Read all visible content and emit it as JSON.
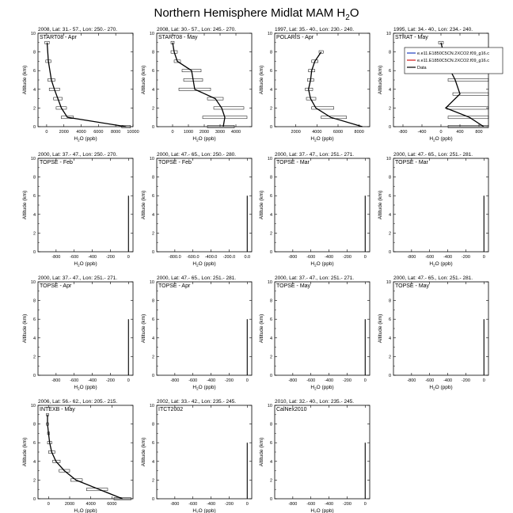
{
  "figure": {
    "title_main": "Northern Hemisphere Midlat MAM H",
    "title_sub": "2",
    "title_tail": "O",
    "xlabel_main": "H",
    "xlabel_sub": "2",
    "xlabel_tail": "O (ppb)",
    "ylabel": "Altitude (km)",
    "colors": {
      "model_blue": "#1f3fbf",
      "model_red": "#d01818",
      "data": "#000000"
    }
  },
  "chart_data": [
    {
      "type": "line",
      "header": "2008, Lat: 31.- 57., Lon: 250.- 270.",
      "campaign": "START08 - Apr",
      "xlim": [
        -1000,
        10000
      ],
      "xticks": [
        0,
        2000,
        4000,
        6000,
        8000,
        10000
      ],
      "xtick_labels": [
        "0",
        "2000",
        "4000",
        "6000",
        "8000",
        "10000"
      ],
      "ylim": [
        0,
        10
      ],
      "yticks": [
        0,
        2,
        4,
        6,
        8,
        10
      ],
      "series": [
        {
          "name": "Data",
          "x": [
            9200,
            2400,
            1700,
            1300,
            900,
            550,
            200,
            50
          ],
          "y": [
            0,
            1,
            2,
            3,
            4,
            5,
            7,
            9
          ],
          "xmin": [
            8700,
            1700,
            1100,
            800,
            300,
            150,
            -100,
            -200
          ],
          "xmax": [
            9700,
            3100,
            2300,
            1800,
            1500,
            950,
            500,
            300
          ]
        }
      ]
    },
    {
      "type": "line",
      "header": "2008, Lat: 30.- 57., Lon: 245.- 270.",
      "campaign": "START08 - May",
      "xlim": [
        -1000,
        5000
      ],
      "xticks": [
        0,
        1000,
        2000,
        3000,
        4000
      ],
      "xtick_labels": [
        "0",
        "1000",
        "2000",
        "3000",
        "4000"
      ],
      "ylim": [
        0,
        10
      ],
      "yticks": [
        0,
        2,
        4,
        6,
        8,
        10
      ],
      "series": [
        {
          "name": "Data",
          "x": [
            3200,
            3300,
            3100,
            2700,
            1400,
            1300,
            1200,
            300,
            100,
            0
          ],
          "y": [
            0,
            1,
            2,
            3,
            4,
            5,
            6,
            7,
            8,
            9
          ],
          "xmin": [
            2200,
            1900,
            2600,
            2200,
            400,
            700,
            600,
            100,
            -100,
            -100
          ],
          "xmax": [
            3900,
            4700,
            4500,
            3200,
            2400,
            1900,
            1800,
            500,
            300,
            100
          ]
        }
      ]
    },
    {
      "type": "line",
      "header": "1997, Lat: 35.- 40., Lon: 230.- 240.",
      "campaign": "POLARIS - Apr",
      "xlim": [
        0,
        9000
      ],
      "xticks": [
        2000,
        4000,
        6000,
        8000
      ],
      "xtick_labels": [
        "2000",
        "4000",
        "6000",
        "8000"
      ],
      "ylim": [
        0,
        10
      ],
      "yticks": [
        0,
        2,
        4,
        6,
        8,
        10
      ],
      "series": [
        {
          "name": "Data",
          "x": [
            8300,
            5300,
            3900,
            3400,
            3200,
            3400,
            3500,
            3800,
            4400
          ],
          "y": [
            0,
            1,
            2,
            3,
            4,
            5,
            6,
            7,
            8
          ],
          "xmin": [
            8300,
            4400,
            3500,
            3000,
            2900,
            3100,
            3200,
            3500,
            4200
          ],
          "xmax": [
            8300,
            6800,
            5600,
            3900,
            3600,
            3700,
            3800,
            4100,
            4600
          ]
        }
      ]
    },
    {
      "type": "line",
      "header": "1995, Lat: 34.- 40., Lon: 234.- 240.",
      "campaign": "STRAT - May",
      "xlim": [
        -1000,
        1000
      ],
      "xticks": [
        -800,
        -400,
        0,
        400,
        800
      ],
      "xtick_labels": [
        "-800",
        "-400",
        "0",
        "400",
        "800"
      ],
      "ylim": [
        0,
        10
      ],
      "yticks": [
        0,
        2,
        4,
        6,
        8,
        10
      ],
      "legend": [
        "e.e11.E1850C5CN.2XCO2.f09_g16.c",
        "e.e11.E1850C5CN.2XCO2.f09_g16.c",
        "Data"
      ],
      "series": [
        {
          "name": "Data",
          "x": [
            900,
            600,
            100,
            400,
            300,
            100,
            0
          ],
          "y": [
            0,
            1,
            2,
            3.5,
            5,
            7,
            9
          ],
          "xmin": [
            150,
            150,
            120,
            250,
            150,
            100,
            -50
          ],
          "xmax": [
            1000,
            1000,
            1000,
            1000,
            1000,
            1000,
            50
          ]
        }
      ]
    },
    {
      "type": "line",
      "header": "2000, Lat: 37.- 47., Lon: 250.- 270.",
      "campaign": "TOPSE - Feb",
      "xlim": [
        -1000,
        50
      ],
      "xticks": [
        -800,
        -600,
        -400,
        -200,
        0
      ],
      "xtick_labels": [
        "-800",
        "-600",
        "-400",
        "-200",
        "0"
      ],
      "ylim": [
        0,
        10
      ],
      "yticks": [
        0,
        2,
        4,
        6,
        8,
        10
      ],
      "series": []
    },
    {
      "type": "line",
      "header": "2000, Lat: 47.- 65., Lon: 250.- 280.",
      "campaign": "TOPSE - Feb",
      "xlim": [
        -1000,
        50
      ],
      "xticks": [
        -800,
        -600,
        -400,
        -200,
        0
      ],
      "xtick_labels": [
        "-800.0",
        "-600.0",
        "-400.0",
        "-200.0",
        "0.0"
      ],
      "ylim": [
        0,
        10
      ],
      "yticks": [
        0,
        2,
        4,
        6,
        8,
        10
      ],
      "series": []
    },
    {
      "type": "line",
      "header": "2000, Lat: 37.- 47., Lon: 251.- 271.",
      "campaign": "TOPSE - Mar",
      "xlim": [
        -1000,
        50
      ],
      "xticks": [
        -800,
        -600,
        -400,
        -200,
        0
      ],
      "xtick_labels": [
        "-800",
        "-600",
        "-400",
        "-200",
        "0"
      ],
      "ylim": [
        0,
        10
      ],
      "yticks": [
        0,
        2,
        4,
        6,
        8,
        10
      ],
      "series": []
    },
    {
      "type": "line",
      "header": "2000, Lat: 47.- 65., Lon: 251.- 281.",
      "campaign": "TOPSE - Mar",
      "xlim": [
        -1000,
        50
      ],
      "xticks": [
        -800,
        -600,
        -400,
        -200,
        0
      ],
      "xtick_labels": [
        "-800",
        "-600",
        "-400",
        "-200",
        "0"
      ],
      "ylim": [
        0,
        10
      ],
      "yticks": [
        0,
        2,
        4,
        6,
        8,
        10
      ],
      "series": []
    },
    {
      "type": "line",
      "header": "2000, Lat: 37.- 47., Lon: 251.- 271.",
      "campaign": "TOPSE - Apr",
      "xlim": [
        -1000,
        50
      ],
      "xticks": [
        -800,
        -600,
        -400,
        -200,
        0
      ],
      "xtick_labels": [
        "-800",
        "-600",
        "-400",
        "-200",
        "0"
      ],
      "ylim": [
        0,
        10
      ],
      "yticks": [
        0,
        2,
        4,
        6,
        8,
        10
      ],
      "series": []
    },
    {
      "type": "line",
      "header": "2000, Lat: 47.- 65., Lon: 251.- 281.",
      "campaign": "TOPSE - Apr",
      "xlim": [
        -1000,
        50
      ],
      "xticks": [
        -800,
        -600,
        -400,
        -200,
        0
      ],
      "xtick_labels": [
        "-800",
        "-600",
        "-400",
        "-200",
        "0"
      ],
      "ylim": [
        0,
        10
      ],
      "yticks": [
        0,
        2,
        4,
        6,
        8,
        10
      ],
      "series": []
    },
    {
      "type": "line",
      "header": "2000, Lat: 37.- 47., Lon: 251.- 271.",
      "campaign": "TOPSE - May",
      "xlim": [
        -1000,
        50
      ],
      "xticks": [
        -800,
        -600,
        -400,
        -200,
        0
      ],
      "xtick_labels": [
        "-800",
        "-600",
        "-400",
        "-200",
        "0"
      ],
      "ylim": [
        0,
        10
      ],
      "yticks": [
        0,
        2,
        4,
        6,
        8,
        10
      ],
      "series": []
    },
    {
      "type": "line",
      "header": "2000, Lat: 47.- 65., Lon: 251.- 281.",
      "campaign": "TOPSE - May",
      "xlim": [
        -1000,
        50
      ],
      "xticks": [
        -800,
        -600,
        -400,
        -200,
        0
      ],
      "xtick_labels": [
        "-800",
        "-600",
        "-400",
        "-200",
        "0"
      ],
      "ylim": [
        0,
        10
      ],
      "yticks": [
        0,
        2,
        4,
        6,
        8,
        10
      ],
      "series": []
    },
    {
      "type": "line",
      "header": "2006, Lat: 56.- 62., Lon: 205.- 215.",
      "campaign": "INTEXB - May",
      "xlim": [
        -1000,
        8000
      ],
      "xticks": [
        0,
        2000,
        4000,
        6000
      ],
      "xtick_labels": [
        "0",
        "2000",
        "4000",
        "6000"
      ],
      "ylim": [
        0,
        10
      ],
      "yticks": [
        0,
        2,
        4,
        6,
        8,
        10
      ],
      "series": [
        {
          "name": "Data",
          "x": [
            7000,
            4800,
            2600,
            1500,
            700,
            300,
            100,
            0,
            -100,
            -100
          ],
          "y": [
            0,
            1,
            2,
            3,
            4,
            5,
            6,
            7,
            8,
            9
          ],
          "xmin": [
            6200,
            3600,
            2100,
            1000,
            400,
            0,
            -100,
            -100,
            -200,
            -200
          ],
          "xmax": [
            7800,
            5600,
            3200,
            2000,
            1100,
            600,
            300,
            100,
            0,
            0
          ]
        }
      ]
    },
    {
      "type": "line",
      "header": "2002, Lat: 33.- 42., Lon: 235.- 245.",
      "campaign": "ITCT2002",
      "xlim": [
        -1000,
        50
      ],
      "xticks": [
        -800,
        -600,
        -400,
        -200,
        0
      ],
      "xtick_labels": [
        "-800",
        "-600",
        "-400",
        "-200",
        "0"
      ],
      "ylim": [
        0,
        10
      ],
      "yticks": [
        0,
        2,
        4,
        6,
        8,
        10
      ],
      "series": []
    },
    {
      "type": "line",
      "header": "2010, Lat: 32.- 40., Lon: 235.- 245.",
      "campaign": "CalNex2010",
      "xlim": [
        -1000,
        50
      ],
      "xticks": [
        -800,
        -600,
        -400,
        -200,
        0
      ],
      "xtick_labels": [
        "-800",
        "-600",
        "-400",
        "-200",
        "0"
      ],
      "ylim": [
        0,
        10
      ],
      "yticks": [
        0,
        2,
        4,
        6,
        8,
        10
      ],
      "series": []
    }
  ]
}
